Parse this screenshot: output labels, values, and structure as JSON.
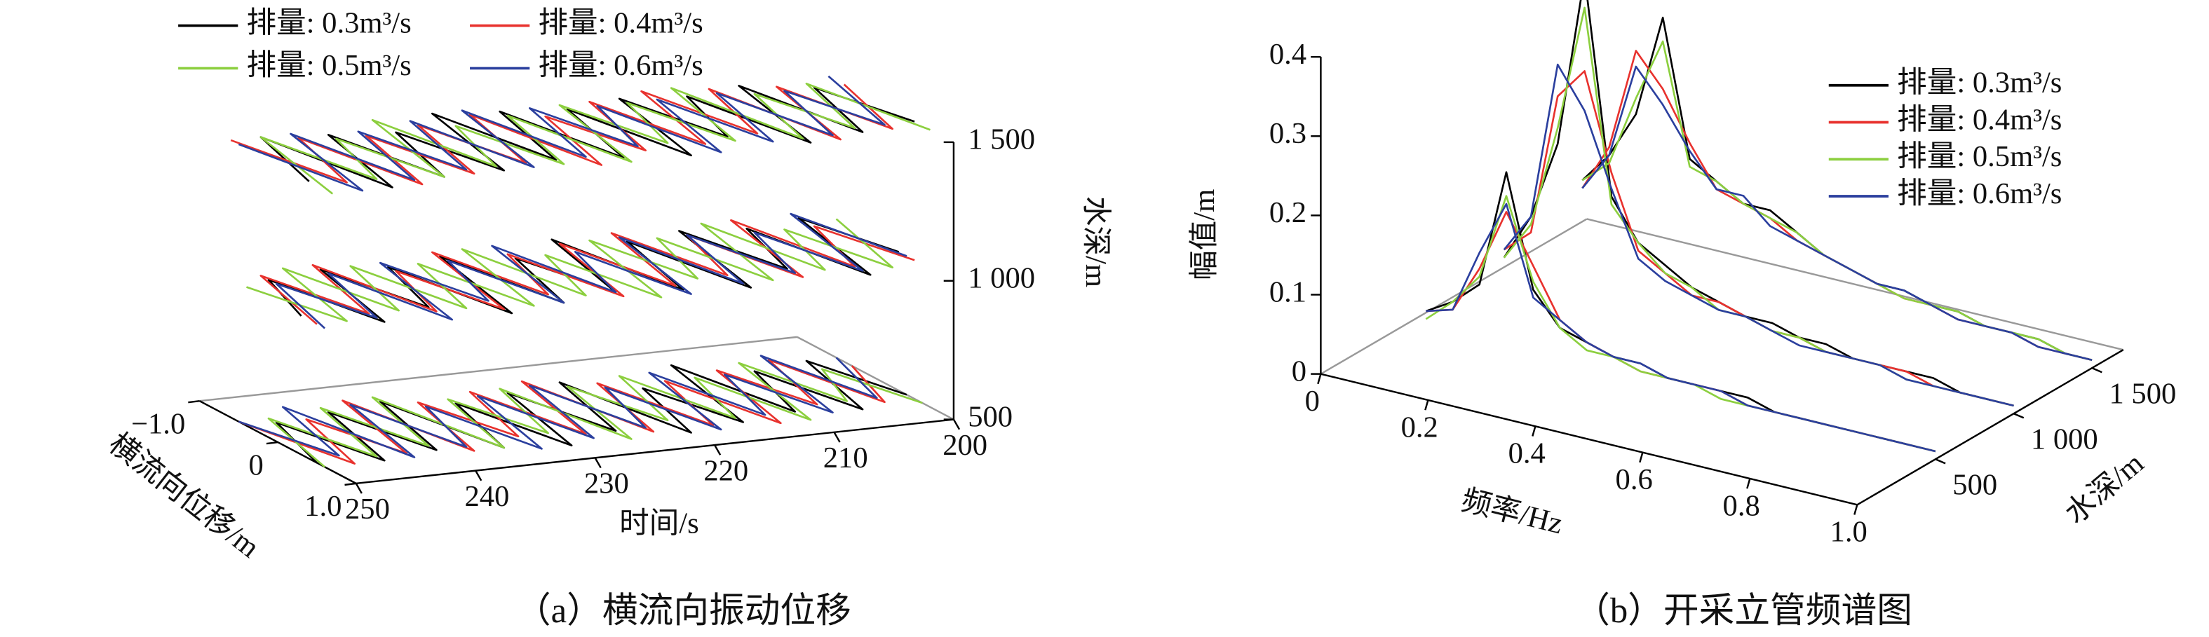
{
  "chart_data": [
    {
      "type": "line3d",
      "caption": "（a）横流向振动位移",
      "x_label": "时间/s",
      "y_label": "横流向位移/m",
      "z_label": "水深/m",
      "x": [
        200,
        202.5,
        205,
        207.5,
        210,
        212.5,
        215,
        217.5,
        220,
        222.5,
        225,
        227.5,
        230,
        232.5,
        235,
        237.5,
        240,
        242.5,
        245,
        247.5,
        250
      ],
      "xlim": [
        200,
        250
      ],
      "xticks": [
        200,
        210,
        220,
        230,
        240,
        250
      ],
      "ylim": [
        -1,
        1
      ],
      "yticks": [
        {
          "value": -1,
          "label": "−1.0"
        },
        0,
        {
          "value": 1,
          "label": "1.0"
        }
      ],
      "zlim": [
        500,
        1500
      ],
      "zticks": [
        500,
        {
          "value": 1000,
          "label": "1 000"
        },
        {
          "value": 1500,
          "label": "1 500"
        }
      ],
      "depths": [
        500,
        1000,
        1500
      ],
      "legend": "upper left",
      "series": [
        {
          "name": "排量: 0.3m³/s",
          "color": "#000000",
          "values": [
            [
              0.4,
              -0.5,
              0.6,
              -0.4,
              0.5,
              -0.7,
              0.6,
              -0.3,
              0.7,
              -0.6,
              0.5,
              -0.5,
              0.7,
              -0.4,
              0.6,
              -0.6,
              0.5,
              -0.5,
              0.6,
              -0.4,
              0.5
            ],
            [
              0.3,
              -0.6,
              0.7,
              -0.5,
              0.4,
              -0.6,
              0.7,
              -0.5,
              0.6,
              -0.7,
              0.5,
              -0.4,
              0.6,
              -0.6,
              0.7,
              -0.5,
              0.4,
              -0.6,
              0.6,
              -0.5,
              0.3
            ],
            [
              0.5,
              -0.4,
              0.6,
              -0.6,
              0.7,
              -0.5,
              0.4,
              -0.6,
              0.7,
              -0.5,
              0.6,
              -0.6,
              0.5,
              -0.7,
              0.6,
              -0.4,
              0.6,
              -0.5,
              0.7,
              -0.6,
              0.4
            ]
          ]
        },
        {
          "name": "排量: 0.4m³/s",
          "color": "#e8322e",
          "values": [
            [
              -0.3,
              0.5,
              -0.6,
              0.4,
              -0.5,
              0.7,
              -0.4,
              0.6,
              -0.5,
              0.6,
              -0.7,
              0.5,
              -0.6,
              0.4,
              -0.5,
              0.6,
              -0.7,
              0.5,
              -0.4,
              0.6,
              -0.5
            ],
            [
              0.5,
              -0.4,
              0.5,
              -0.7,
              0.6,
              -0.5,
              0.4,
              -0.7,
              0.5,
              -0.6,
              0.6,
              -0.5,
              0.4,
              -0.7,
              0.6,
              -0.4,
              0.5,
              -0.7,
              0.4,
              -0.6,
              0.5
            ],
            [
              -0.4,
              0.6,
              -0.5,
              0.7,
              -0.6,
              0.4,
              -0.7,
              0.5,
              -0.6,
              0.5,
              -0.4,
              0.7,
              -0.6,
              0.5,
              -0.5,
              0.6,
              -0.4,
              0.7,
              -0.5,
              0.5,
              -0.6
            ]
          ]
        },
        {
          "name": "排量: 0.5m³/s",
          "color": "#8ccf3f",
          "values": [
            [
              0.6,
              -0.3,
              0.4,
              -0.6,
              0.7,
              -0.4,
              0.5,
              -0.6,
              0.4,
              -0.5,
              0.7,
              -0.6,
              0.4,
              -0.5,
              0.6,
              -0.7,
              0.4,
              -0.6,
              0.5,
              -0.5,
              0.6
            ],
            [
              -0.5,
              0.6,
              -0.4,
              0.5,
              -0.7,
              0.6,
              -0.5,
              0.4,
              -0.6,
              0.7,
              -0.4,
              0.5,
              -0.7,
              0.6,
              -0.5,
              0.5,
              -0.6,
              0.4,
              -0.7,
              0.5,
              -0.4
            ],
            [
              0.7,
              -0.5,
              0.5,
              -0.4,
              0.6,
              -0.7,
              0.5,
              -0.5,
              0.4,
              -0.6,
              0.7,
              -0.5,
              0.6,
              -0.4,
              0.5,
              -0.7,
              0.6,
              -0.4,
              0.5,
              -0.6,
              0.7
            ]
          ]
        },
        {
          "name": "排量: 0.6m³/s",
          "color": "#2b3f9e",
          "values": [
            [
              -0.5,
              0.4,
              -0.7,
              0.6,
              -0.4,
              0.5,
              -0.6,
              0.7,
              -0.4,
              0.5,
              -0.6,
              0.6,
              -0.5,
              0.7,
              -0.4,
              0.5,
              -0.6,
              0.6,
              -0.7,
              0.4,
              -0.5
            ],
            [
              0.4,
              -0.7,
              0.6,
              -0.4,
              0.5,
              -0.5,
              0.6,
              -0.6,
              0.7,
              -0.4,
              0.5,
              -0.7,
              0.6,
              -0.5,
              0.4,
              -0.6,
              0.7,
              -0.5,
              0.5,
              -0.4,
              0.6
            ],
            [
              -0.6,
              0.5,
              -0.4,
              0.6,
              -0.5,
              0.6,
              -0.5,
              0.7,
              -0.5,
              0.4,
              -0.6,
              0.5,
              -0.7,
              0.6,
              -0.6,
              0.5,
              -0.5,
              0.6,
              -0.6,
              0.7,
              -0.5
            ]
          ]
        }
      ]
    },
    {
      "type": "spectrum3d",
      "caption": "（b）开采立管频谱图",
      "x_label": "频率/Hz",
      "y_label": "幅值/m",
      "z_label": "水深/m",
      "x": [
        0.05,
        0.1,
        0.15,
        0.2,
        0.25,
        0.3,
        0.35,
        0.4,
        0.45,
        0.5,
        0.55,
        0.6,
        0.65,
        0.7,
        0.75,
        0.8,
        0.85,
        0.9,
        0.95,
        1.0
      ],
      "xlim": [
        0,
        1
      ],
      "xticks": [
        0,
        0.2,
        0.4,
        0.6,
        0.8,
        {
          "value": 1,
          "label": "1.0"
        }
      ],
      "ylim": [
        0,
        0.4
      ],
      "yticks": [
        0,
        0.1,
        0.2,
        0.3,
        0.4
      ],
      "zlim": [
        0,
        1700
      ],
      "zticks": [
        500,
        {
          "value": 1000,
          "label": "1 000"
        },
        {
          "value": 1500,
          "label": "1 500"
        }
      ],
      "depths": [
        500,
        1000,
        1500
      ],
      "legend": "upper right",
      "series": [
        {
          "name": "排量: 0.3m³/s",
          "color": "#000000",
          "values": [
            [
              0.03,
              0.05,
              0.08,
              0.23,
              0.09,
              0.05,
              0.04,
              0.03,
              0.03,
              0.02,
              0.02,
              0.02,
              0.02,
              0.01,
              0.01,
              0.01,
              0.01,
              0.01,
              0.01,
              0.01
            ],
            [
              0.04,
              0.1,
              0.2,
              0.42,
              0.15,
              0.1,
              0.08,
              0.06,
              0.05,
              0.04,
              0.04,
              0.03,
              0.03,
              0.02,
              0.02,
              0.02,
              0.02,
              0.01,
              0.01,
              0.01
            ],
            [
              0.08,
              0.12,
              0.18,
              0.31,
              0.14,
              0.12,
              0.1,
              0.1,
              0.08,
              0.06,
              0.05,
              0.04,
              0.04,
              0.03,
              0.03,
              0.02,
              0.02,
              0.02,
              0.01,
              0.01
            ]
          ]
        },
        {
          "name": "排量: 0.4m³/s",
          "color": "#e8322e",
          "values": [
            [
              0.03,
              0.04,
              0.1,
              0.18,
              0.12,
              0.06,
              0.04,
              0.03,
              0.02,
              0.02,
              0.02,
              0.02,
              0.01,
              0.01,
              0.01,
              0.01,
              0.01,
              0.01,
              0.01,
              0.01
            ],
            [
              0.05,
              0.08,
              0.26,
              0.3,
              0.18,
              0.09,
              0.07,
              0.05,
              0.05,
              0.04,
              0.03,
              0.03,
              0.02,
              0.02,
              0.02,
              0.02,
              0.01,
              0.01,
              0.01,
              0.01
            ],
            [
              0.07,
              0.13,
              0.26,
              0.22,
              0.16,
              0.11,
              0.1,
              0.09,
              0.07,
              0.06,
              0.05,
              0.04,
              0.03,
              0.03,
              0.02,
              0.02,
              0.02,
              0.01,
              0.01,
              0.01
            ]
          ]
        },
        {
          "name": "排量: 0.5m³/s",
          "color": "#8ccf3f",
          "values": [
            [
              0.02,
              0.05,
              0.09,
              0.2,
              0.1,
              0.05,
              0.03,
              0.03,
              0.02,
              0.02,
              0.02,
              0.01,
              0.01,
              0.01,
              0.01,
              0.01,
              0.01,
              0.01,
              0.01,
              0.01
            ],
            [
              0.04,
              0.09,
              0.22,
              0.38,
              0.14,
              0.1,
              0.07,
              0.06,
              0.04,
              0.04,
              0.03,
              0.03,
              0.02,
              0.02,
              0.02,
              0.01,
              0.01,
              0.01,
              0.01,
              0.01
            ],
            [
              0.08,
              0.11,
              0.2,
              0.28,
              0.13,
              0.12,
              0.1,
              0.09,
              0.08,
              0.06,
              0.05,
              0.04,
              0.03,
              0.03,
              0.03,
              0.02,
              0.02,
              0.02,
              0.01,
              0.01
            ]
          ]
        },
        {
          "name": "排量: 0.6m³/s",
          "color": "#2b3f9e",
          "values": [
            [
              0.03,
              0.04,
              0.12,
              0.19,
              0.08,
              0.06,
              0.04,
              0.03,
              0.03,
              0.02,
              0.02,
              0.02,
              0.01,
              0.01,
              0.01,
              0.01,
              0.01,
              0.01,
              0.01,
              0.01
            ],
            [
              0.05,
              0.1,
              0.3,
              0.25,
              0.16,
              0.08,
              0.06,
              0.05,
              0.04,
              0.04,
              0.03,
              0.02,
              0.02,
              0.02,
              0.02,
              0.01,
              0.01,
              0.01,
              0.01,
              0.01
            ],
            [
              0.07,
              0.12,
              0.24,
              0.2,
              0.15,
              0.11,
              0.11,
              0.08,
              0.07,
              0.06,
              0.05,
              0.04,
              0.04,
              0.03,
              0.02,
              0.02,
              0.02,
              0.01,
              0.01,
              0.01
            ]
          ]
        }
      ]
    }
  ]
}
